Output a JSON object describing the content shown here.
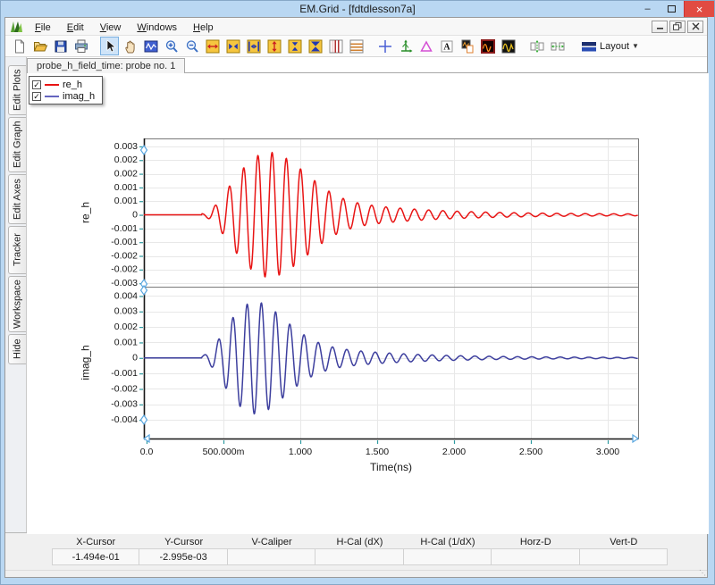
{
  "window": {
    "title": "EM.Grid - [fdtdlesson7a]"
  },
  "titlebar_buttons": [
    {
      "name": "minimize",
      "glyph": "dash"
    },
    {
      "name": "maximize",
      "glyph": "box"
    },
    {
      "name": "close",
      "glyph": "x"
    }
  ],
  "menubar": {
    "items": [
      "File",
      "Edit",
      "View",
      "Windows",
      "Help"
    ]
  },
  "mdi_buttons": [
    "minimize",
    "restore",
    "close"
  ],
  "toolbar": {
    "icons": [
      {
        "name": "new-document"
      },
      {
        "name": "open-file"
      },
      {
        "name": "save-file"
      },
      {
        "name": "print"
      },
      {
        "name": "separator"
      },
      {
        "name": "select-cursor",
        "active": true
      },
      {
        "name": "pan-hand"
      },
      {
        "name": "plot-window"
      },
      {
        "name": "zoom-in"
      },
      {
        "name": "zoom-out"
      },
      {
        "name": "h-expand-axis"
      },
      {
        "name": "h-zoom-axis"
      },
      {
        "name": "h-fit-axis"
      },
      {
        "name": "v-expand-axis"
      },
      {
        "name": "v-zoom-axis"
      },
      {
        "name": "v-fit-axis"
      },
      {
        "name": "split-columns"
      },
      {
        "name": "split-rows"
      },
      {
        "name": "separator"
      },
      {
        "name": "crosshair-cursor"
      },
      {
        "name": "tracker-axes"
      },
      {
        "name": "caliper"
      },
      {
        "name": "text-annotation"
      },
      {
        "name": "copy-graph"
      },
      {
        "name": "graph-style-dark-red"
      },
      {
        "name": "graph-style-dark"
      },
      {
        "name": "separator"
      },
      {
        "name": "equal-vertical-spacing"
      },
      {
        "name": "equal-horizontal-spacing"
      },
      {
        "name": "separator"
      },
      {
        "name": "layout-menu",
        "label": "Layout"
      }
    ]
  },
  "sidebar": {
    "tabs": [
      "Edit Plots",
      "Edit Graph",
      "Edit Axes",
      "Tracker",
      "Workspace",
      "Hide"
    ]
  },
  "tabbar": {
    "tabs": [
      {
        "label": "probe_h_field_time: probe no. 1",
        "active": true
      }
    ]
  },
  "legend": {
    "items": [
      {
        "label": "re_h",
        "color": "#e81414",
        "checked": true
      },
      {
        "label": "imag_h",
        "color": "#6565c0",
        "checked": true
      }
    ]
  },
  "chart_data": [
    {
      "type": "line",
      "ylabel": "re_h",
      "xlabel": "",
      "xlim": [
        -0.0174,
        3.198
      ],
      "ylim": [
        -0.00315,
        0.00335
      ],
      "grid": true,
      "x_ticks": [
        {
          "v": 0.0,
          "label": "0.0"
        },
        {
          "v": 0.5,
          "label": "500.000m"
        },
        {
          "v": 1.0,
          "label": "1.000"
        },
        {
          "v": 1.5,
          "label": "1.500"
        },
        {
          "v": 2.0,
          "label": "2.000"
        },
        {
          "v": 2.5,
          "label": "2.500"
        },
        {
          "v": 3.0,
          "label": "3.000"
        }
      ],
      "y_ticks": [
        {
          "v": 0.003,
          "label": "0.003"
        },
        {
          "v": 0.0024,
          "label": "0.002"
        },
        {
          "v": 0.0018,
          "label": "0.002"
        },
        {
          "v": 0.0012,
          "label": "0.001"
        },
        {
          "v": 0.0006,
          "label": "0.001"
        },
        {
          "v": 0,
          "label": "0"
        },
        {
          "v": -0.0006,
          "label": "-0.001"
        },
        {
          "v": -0.0012,
          "label": "-0.001"
        },
        {
          "v": -0.0018,
          "label": "-0.002"
        },
        {
          "v": -0.0024,
          "label": "-0.002"
        },
        {
          "v": -0.003,
          "label": "-0.003"
        }
      ],
      "series": [
        {
          "name": "re_h",
          "color": "#e81414",
          "peak_amplitude": 0.0027,
          "min_amplitude": -0.0028,
          "signal_model": {
            "kind": "gaussian_modulated_ringing_burst",
            "freq_cycles_per_ns": 10.8,
            "phase_rad": 2.0,
            "cutoff_ns": 0.36,
            "onset_ns": 0.44,
            "onset_width_ns": 0.045,
            "gauss_amp": 0.00265,
            "gauss_peak_ns": 0.78,
            "gauss_width_ns": 0.3,
            "tail_amp": 0.0009,
            "tail_start_ns": 1.0,
            "tail_tau_ns": 0.5,
            "slow_amp": 6e-05,
            "slow_tau_ns": 3.0
          }
        }
      ]
    },
    {
      "type": "line",
      "ylabel": "imag_h",
      "xlabel": "Time(ns)",
      "xlim": [
        -0.0174,
        3.198
      ],
      "ylim": [
        -0.0052,
        0.0046
      ],
      "grid": true,
      "x_ticks": [
        {
          "v": 0.0,
          "label": "0.0"
        },
        {
          "v": 0.5,
          "label": "500.000m"
        },
        {
          "v": 1.0,
          "label": "1.000"
        },
        {
          "v": 1.5,
          "label": "1.500"
        },
        {
          "v": 2.0,
          "label": "2.000"
        },
        {
          "v": 2.5,
          "label": "2.500"
        },
        {
          "v": 3.0,
          "label": "3.000"
        }
      ],
      "y_ticks": [
        {
          "v": 0.004,
          "label": "0.004"
        },
        {
          "v": 0.003,
          "label": "0.003"
        },
        {
          "v": 0.002,
          "label": "0.002"
        },
        {
          "v": 0.001,
          "label": "0.001"
        },
        {
          "v": 0,
          "label": "0"
        },
        {
          "v": -0.001,
          "label": "-0.001"
        },
        {
          "v": -0.002,
          "label": "-0.002"
        },
        {
          "v": -0.003,
          "label": "-0.003"
        },
        {
          "v": -0.004,
          "label": "-0.004"
        }
      ],
      "series": [
        {
          "name": "imag_h",
          "color": "#3d3f9e",
          "peak_amplitude": 0.0035,
          "min_amplitude": -0.0039,
          "signal_model": {
            "kind": "gaussian_modulated_ringing_burst",
            "freq_cycles_per_ns": 10.8,
            "phase_rad": 0.45,
            "cutoff_ns": 0.36,
            "onset_ns": 0.43,
            "onset_width_ns": 0.045,
            "gauss_amp": 0.00355,
            "gauss_peak_ns": 0.7,
            "gauss_width_ns": 0.27,
            "tail_amp": 0.001,
            "tail_start_ns": 0.95,
            "tail_tau_ns": 0.48,
            "slow_amp": 6e-05,
            "slow_tau_ns": 3.0
          }
        }
      ]
    }
  ],
  "statusbar": {
    "columns": [
      {
        "header": "X-Cursor",
        "value": "-1.494e-01"
      },
      {
        "header": "Y-Cursor",
        "value": "-2.995e-03"
      },
      {
        "header": "V-Caliper",
        "value": ""
      },
      {
        "header": "H-Cal (dX)",
        "value": ""
      },
      {
        "header": "H-Cal (1/dX)",
        "value": ""
      },
      {
        "header": "Horz-D",
        "value": ""
      },
      {
        "header": "Vert-D",
        "value": ""
      }
    ]
  },
  "colors": {
    "titlebar_bg": "#b9d7f2",
    "close_button": "#e14b42",
    "grid_line": "#e8e8e8",
    "frame_line": "#7a7a7a",
    "axis_line": "#161616",
    "tick_mark": "#2e9aa0",
    "handle": "#5aa7e0",
    "active_tool_bg": "#cfe4f8"
  }
}
